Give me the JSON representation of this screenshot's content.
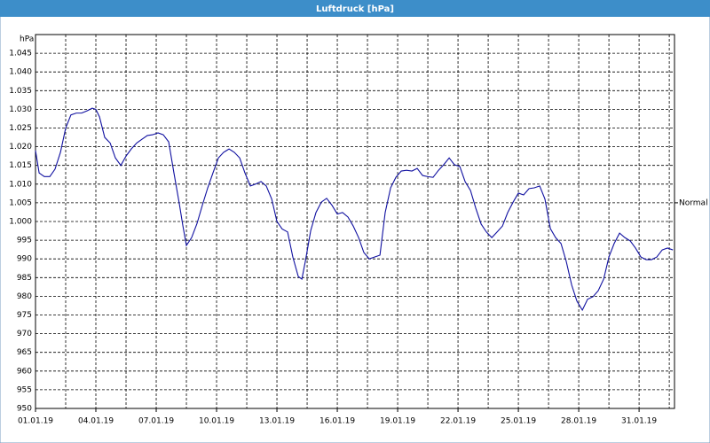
{
  "chart_data": {
    "type": "line",
    "title": "Luftdruck [hPa]",
    "y_unit": "hPa",
    "annotations": [
      {
        "text": "Normal",
        "value": 1005
      }
    ],
    "x": [
      0,
      0.18,
      0.44,
      0.71,
      0.97,
      1.24,
      1.5,
      1.76,
      2.03,
      2.29,
      2.56,
      2.82,
      3.0,
      3.18,
      3.44,
      3.71,
      3.97,
      4.24,
      4.5,
      4.76,
      5.03,
      5.29,
      5.56,
      5.82,
      6.09,
      6.35,
      6.62,
      6.88,
      7.15,
      7.32,
      7.5,
      7.76,
      8.03,
      8.29,
      8.56,
      8.82,
      9.09,
      9.35,
      9.62,
      9.88,
      10.15,
      10.41,
      10.68,
      10.94,
      11.21,
      11.47,
      11.74,
      12.0,
      12.26,
      12.53,
      12.79,
      13.06,
      13.24,
      13.41,
      13.68,
      13.94,
      14.21,
      14.47,
      14.74,
      15.0,
      15.26,
      15.53,
      15.79,
      16.06,
      16.32,
      16.59,
      16.85,
      17.12,
      17.38,
      17.65,
      17.91,
      18.18,
      18.44,
      18.71,
      18.97,
      19.24,
      19.5,
      19.76,
      20.03,
      20.29,
      20.56,
      20.82,
      21.09,
      21.35,
      21.62,
      21.88,
      22.15,
      22.41,
      22.68,
      22.94,
      23.21,
      23.47,
      23.74,
      24.0,
      24.26,
      24.53,
      24.79,
      25.06,
      25.32,
      25.59,
      25.85,
      26.12,
      26.38,
      26.65,
      26.91,
      27.18,
      27.44,
      27.71,
      27.97,
      28.24,
      28.5,
      28.76,
      29.03,
      29.29,
      29.56,
      29.82,
      30.09,
      30.35,
      30.62,
      30.88,
      31.15,
      31.41,
      31.68
    ],
    "series": [
      {
        "color": "#1010a0",
        "values": [
          1019,
          1013,
          1012,
          1012,
          1014,
          1018.5,
          1025,
          1028.5,
          1029,
          1029,
          1029.6,
          1030.3,
          1030,
          1028,
          1022.5,
          1021,
          1017,
          1015,
          1017.5,
          1019.4,
          1021,
          1022,
          1023,
          1023.2,
          1023.7,
          1023.2,
          1021.3,
          1013,
          1004.7,
          999,
          993.6,
          995.7,
          999.5,
          1004.3,
          1009,
          1013,
          1017,
          1018.5,
          1019.4,
          1018.5,
          1017,
          1013,
          1009.5,
          1010,
          1010.7,
          1009.5,
          1006,
          1000,
          998,
          997.2,
          990.5,
          985.3,
          984.6,
          989.3,
          997.6,
          1002.4,
          1005.2,
          1006.2,
          1004.3,
          1002,
          1002.4,
          1001.2,
          998.8,
          995.7,
          991.7,
          990,
          990.5,
          991,
          1002.4,
          1009,
          1011.8,
          1013.5,
          1013.7,
          1013.5,
          1014.2,
          1012.3,
          1012,
          1011.8,
          1013.7,
          1015.2,
          1017,
          1015.2,
          1014.7,
          1010.7,
          1008.3,
          1003.6,
          999.3,
          997.2,
          995.7,
          997.2,
          998.8,
          1002.4,
          1005.2,
          1007.6,
          1007.1,
          1008.8,
          1009,
          1009.5,
          1006,
          998.1,
          995.7,
          994.1,
          989.3,
          983,
          978.7,
          976.3,
          979.2,
          979.9,
          981.5,
          984.6,
          990.5,
          994.1,
          996.9,
          995.7,
          994.8,
          992.9,
          990.5,
          989.8,
          989.8,
          990.5,
          992.4,
          992.9,
          992.4
        ]
      }
    ],
    "xlim": [
      0,
      31.76
    ],
    "xticks": [
      {
        "value": 0,
        "label": "01.01.19"
      },
      {
        "value": 3,
        "label": "04.01.19"
      },
      {
        "value": 6,
        "label": "07.01.19"
      },
      {
        "value": 9,
        "label": "10.01.19"
      },
      {
        "value": 12,
        "label": "13.01.19"
      },
      {
        "value": 15,
        "label": "16.01.19"
      },
      {
        "value": 18,
        "label": "19.01.19"
      },
      {
        "value": 21,
        "label": "22.01.19"
      },
      {
        "value": 24,
        "label": "25.01.19"
      },
      {
        "value": 27,
        "label": "28.01.19"
      },
      {
        "value": 30,
        "label": "31.01.19"
      }
    ],
    "xgrid_step": 1.5,
    "ylim": [
      950,
      1050
    ],
    "yticks": [
      950,
      955,
      960,
      965,
      970,
      975,
      980,
      985,
      990,
      995,
      {
        "value": 1000,
        "label": "1.000"
      },
      {
        "value": 1005,
        "label": "1.005"
      },
      {
        "value": 1010,
        "label": "1.010"
      },
      {
        "value": 1015,
        "label": "1.015"
      },
      {
        "value": 1020,
        "label": "1.020"
      },
      {
        "value": 1025,
        "label": "1.025"
      },
      {
        "value": 1030,
        "label": "1.030"
      },
      {
        "value": 1035,
        "label": "1.035"
      },
      {
        "value": 1040,
        "label": "1.040"
      },
      {
        "value": 1045,
        "label": "1.045"
      }
    ],
    "grid": true
  }
}
